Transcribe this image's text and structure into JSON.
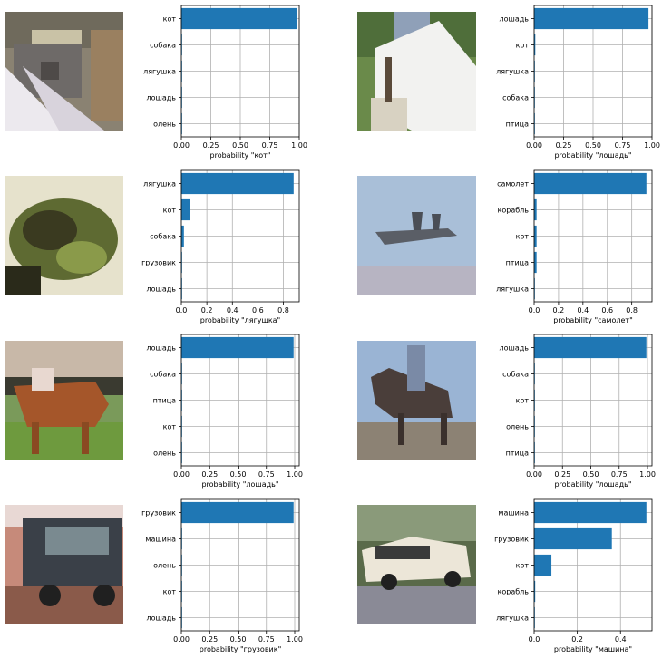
{
  "colors": {
    "bar": "#1f77b4",
    "grid": "#b0b0b0",
    "axis": "#000000"
  },
  "chart_data": [
    {
      "type": "bar",
      "orientation": "horizontal",
      "image_subject": "кот",
      "categories": [
        "кот",
        "собака",
        "лягушка",
        "лошадь",
        "олень"
      ],
      "values": [
        0.98,
        0.005,
        0.003,
        0.002,
        0.001
      ],
      "xlabel": "probability \"кот\"",
      "xlim": [
        0,
        1.0
      ],
      "xticks": [
        "0.00",
        "0.25",
        "0.50",
        "0.75",
        "1.00"
      ],
      "xtick_values": [
        0,
        0.25,
        0.5,
        0.75,
        1.0
      ],
      "grid": true
    },
    {
      "type": "bar",
      "orientation": "horizontal",
      "image_subject": "лошадь",
      "categories": [
        "лошадь",
        "кот",
        "лягушка",
        "собака",
        "птица"
      ],
      "values": [
        0.97,
        0.01,
        0.003,
        0.002,
        0.001
      ],
      "xlabel": "probability \"лошадь\"",
      "xlim": [
        0,
        1.0
      ],
      "xticks": [
        "0.00",
        "0.25",
        "0.50",
        "0.75",
        "1.00"
      ],
      "xtick_values": [
        0,
        0.25,
        0.5,
        0.75,
        1.0
      ],
      "grid": true
    },
    {
      "type": "bar",
      "orientation": "horizontal",
      "image_subject": "лягушка",
      "categories": [
        "лягушка",
        "кот",
        "собака",
        "грузовик",
        "лошадь"
      ],
      "values": [
        0.88,
        0.07,
        0.02,
        0.003,
        0.002
      ],
      "xlabel": "probability \"лягушка\"",
      "xlim": [
        0,
        0.924
      ],
      "xticks": [
        "0.0",
        "0.2",
        "0.4",
        "0.6",
        "0.8"
      ],
      "xtick_values": [
        0,
        0.2,
        0.4,
        0.6,
        0.8
      ],
      "grid": true
    },
    {
      "type": "bar",
      "orientation": "horizontal",
      "image_subject": "самолет",
      "categories": [
        "самолет",
        "корабль",
        "кот",
        "птица",
        "лягушка"
      ],
      "values": [
        0.92,
        0.02,
        0.02,
        0.02,
        0.003
      ],
      "xlabel": "probability \"самолет\"",
      "xlim": [
        0,
        0.966
      ],
      "xticks": [
        "0.0",
        "0.2",
        "0.4",
        "0.6",
        "0.8"
      ],
      "xtick_values": [
        0,
        0.2,
        0.4,
        0.6,
        0.8
      ],
      "grid": true
    },
    {
      "type": "bar",
      "orientation": "horizontal",
      "image_subject": "лошадь",
      "categories": [
        "лошадь",
        "собака",
        "птица",
        "кот",
        "олень"
      ],
      "values": [
        0.99,
        0.003,
        0.002,
        0.002,
        0.001
      ],
      "xlabel": "probability \"лошадь\"",
      "xlim": [
        0,
        1.04
      ],
      "xticks": [
        "0.00",
        "0.25",
        "0.50",
        "0.75",
        "1.00"
      ],
      "xtick_values": [
        0,
        0.25,
        0.5,
        0.75,
        1.0
      ],
      "grid": true
    },
    {
      "type": "bar",
      "orientation": "horizontal",
      "image_subject": "лошадь",
      "categories": [
        "лошадь",
        "собака",
        "кот",
        "олень",
        "птица"
      ],
      "values": [
        0.99,
        0.003,
        0.002,
        0.001,
        0.001
      ],
      "xlabel": "probability \"лошадь\"",
      "xlim": [
        0,
        1.04
      ],
      "xticks": [
        "0.00",
        "0.25",
        "0.50",
        "0.75",
        "1.00"
      ],
      "xtick_values": [
        0,
        0.25,
        0.5,
        0.75,
        1.0
      ],
      "grid": true
    },
    {
      "type": "bar",
      "orientation": "horizontal",
      "image_subject": "грузовик",
      "categories": [
        "грузовик",
        "машина",
        "олень",
        "кот",
        "лошадь"
      ],
      "values": [
        0.99,
        0.004,
        0.002,
        0.001,
        0.001
      ],
      "xlabel": "probability \"грузовик\"",
      "xlim": [
        0,
        1.04
      ],
      "xticks": [
        "0.00",
        "0.25",
        "0.50",
        "0.75",
        "1.00"
      ],
      "xtick_values": [
        0,
        0.25,
        0.5,
        0.75,
        1.0
      ],
      "grid": true
    },
    {
      "type": "bar",
      "orientation": "horizontal",
      "image_subject": "машина",
      "categories": [
        "машина",
        "грузовик",
        "кот",
        "корабль",
        "лягушка"
      ],
      "values": [
        0.52,
        0.36,
        0.08,
        0.005,
        0.003
      ],
      "xlabel": "probability \"машина\"",
      "xlim": [
        0,
        0.546
      ],
      "xticks": [
        "0.0",
        "0.2",
        "0.4"
      ],
      "xtick_values": [
        0,
        0.2,
        0.4
      ],
      "grid": true
    }
  ]
}
